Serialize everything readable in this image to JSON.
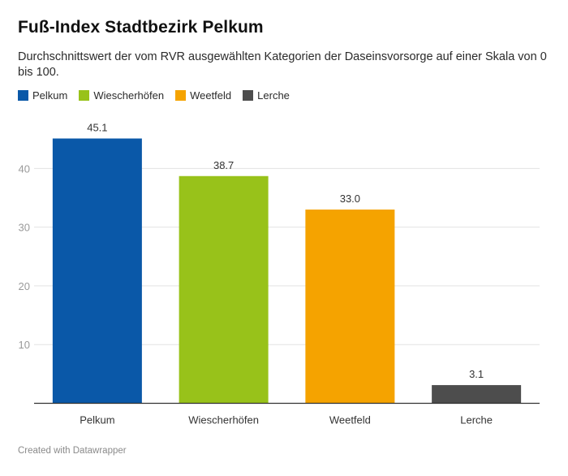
{
  "header": {
    "title": "Fuß-Index Stadtbezirk Pelkum",
    "subtitle": "Durchschnittswert der vom RVR ausgewählten Kategorien der Daseinsvorsorge auf einer Skala von 0 bis 100."
  },
  "footer": {
    "credit": "Created with Datawrapper"
  },
  "chart_data": {
    "type": "bar",
    "title": "Fuß-Index Stadtbezirk Pelkum",
    "subtitle": "Durchschnittswert der vom RVR ausgewählten Kategorien der Daseinsvorsorge auf einer Skala von 0 bis 100.",
    "xlabel": "",
    "ylabel": "",
    "categories": [
      "Pelkum",
      "Wiescherhöfen",
      "Weetfeld",
      "Lerche"
    ],
    "values": [
      45.1,
      38.7,
      33.0,
      3.1
    ],
    "value_labels": [
      "45.1",
      "38.7",
      "33.0",
      "3.1"
    ],
    "colors": [
      "#0a58a8",
      "#98c21a",
      "#f5a300",
      "#4d4d4d"
    ],
    "ylim": [
      0,
      45.1
    ],
    "yticks": [
      10,
      20,
      30,
      40
    ],
    "ytick_labels": [
      "10",
      "20",
      "30",
      "40"
    ],
    "grid": true,
    "legend": {
      "placement": "top-left",
      "entries": [
        {
          "label": "Pelkum",
          "color": "#0a58a8"
        },
        {
          "label": "Wiescherhöfen",
          "color": "#98c21a"
        },
        {
          "label": "Weetfeld",
          "color": "#f5a300"
        },
        {
          "label": "Lerche",
          "color": "#4d4d4d"
        }
      ]
    }
  }
}
